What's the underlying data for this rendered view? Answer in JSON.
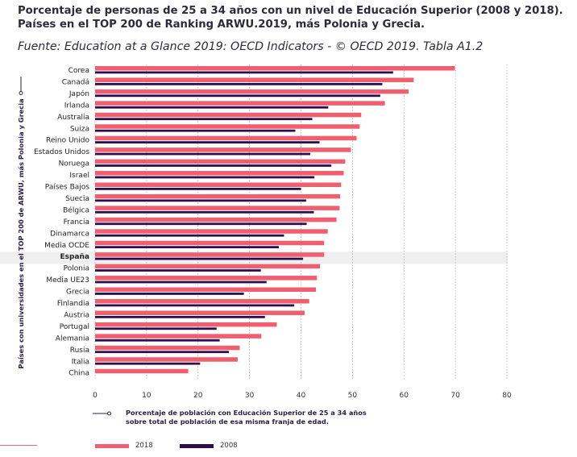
{
  "title": "Porcentaje de personas de 25 a 34 años con un nivel de Educación Superior (2008 y 2018). Países en el TOP 200 de Ranking ARWU.2019, más Polonia y Grecia.",
  "source": "Fuente: Education at a Glance 2019: OECD Indicators - © OECD 2019. Tabla A1.2",
  "colors": {
    "s2018": "#f05f70",
    "s2008": "#2a0f4a",
    "highlight": "#efefef",
    "grid": "#9a9a9a"
  },
  "chart_data": {
    "type": "bar",
    "orientation": "horizontal",
    "ylabel": "Países con universidades en el TOP 200 de  ARWU, más  Polonia y Grecia",
    "xlabel": "Porcentaje de población con Educación Superior de 25 a 34 años sobre total de población de esa misma franja de edad.",
    "xlim": [
      0,
      80
    ],
    "xticks": [
      0,
      10,
      20,
      30,
      40,
      50,
      60,
      70,
      80
    ],
    "highlight_category": "España",
    "categories": [
      "Corea",
      "Canadá",
      "Japón",
      "Irlanda",
      "Australia",
      "Suiza",
      "Reino Unido",
      "Estados Unidos",
      "Noruega",
      "Israel",
      "Países Bajos",
      "Suecia",
      "Bélgica",
      "Francia",
      "Dinamarca",
      "Media OCDE",
      "España",
      "Polonia",
      "Media UE23",
      "Grecia",
      "Finlandia",
      "Austria",
      "Portugal",
      "Alemania",
      "Rusia",
      "Italia",
      "China"
    ],
    "series": [
      {
        "name": "2018",
        "values": [
          69.9,
          61.9,
          60.9,
          56.3,
          51.7,
          51.4,
          50.8,
          49.7,
          48.6,
          48.3,
          47.8,
          47.6,
          47.5,
          46.9,
          45.2,
          44.5,
          44.5,
          43.7,
          43.1,
          42.9,
          41.6,
          40.7,
          35.3,
          32.3,
          28.1,
          27.7,
          18.1
        ]
      },
      {
        "name": "2008",
        "values": [
          57.9,
          55.8,
          55.4,
          45.3,
          42.2,
          38.9,
          43.6,
          41.8,
          45.9,
          42.6,
          40.0,
          41.0,
          42.5,
          41.1,
          36.7,
          35.7,
          40.4,
          32.2,
          33.3,
          28.9,
          38.7,
          33.0,
          23.6,
          24.2,
          26.0,
          20.4,
          null
        ]
      }
    ]
  }
}
